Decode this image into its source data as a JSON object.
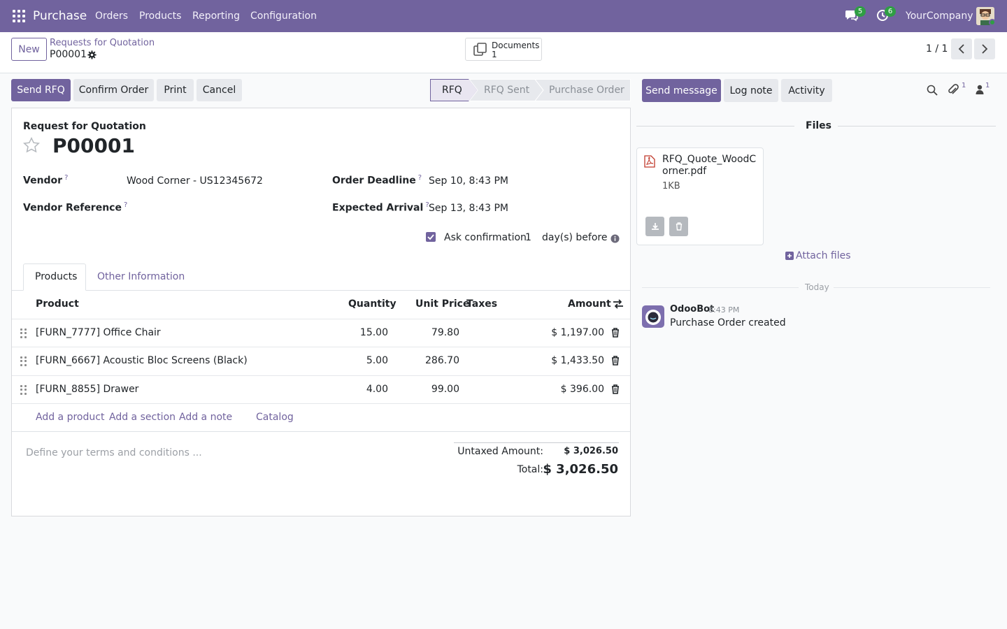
{
  "topbar": {
    "app_name": "Purchase",
    "menu": [
      "Orders",
      "Products",
      "Reporting",
      "Configuration"
    ],
    "messages_count": "5",
    "activities_count": "6",
    "company": "YourCompany"
  },
  "control_panel": {
    "new_label": "New",
    "breadcrumb": "Requests for Quotation",
    "record": "P00001",
    "documents_label": "Documents",
    "documents_count": "1",
    "pager": "1 / 1"
  },
  "actions": {
    "send_rfq": "Send RFQ",
    "confirm_order": "Confirm Order",
    "print": "Print",
    "cancel": "Cancel"
  },
  "statusbar": {
    "stages": [
      "RFQ",
      "RFQ Sent",
      "Purchase Order"
    ],
    "current": "RFQ"
  },
  "form": {
    "heading": "Request for Quotation",
    "name": "P00001",
    "vendor_label": "Vendor",
    "vendor_value": "Wood Corner - US12345672",
    "vendor_ref_label": "Vendor Reference",
    "vendor_ref_value": "",
    "order_deadline_label": "Order Deadline",
    "order_deadline_value": "Sep 10, 8:43 PM",
    "expected_arrival_label": "Expected Arrival",
    "expected_arrival_value": "Sep 13, 8:43 PM",
    "ask_confirmation_label": "Ask confirmation",
    "ask_confirmation_days": "1",
    "days_before": "day(s) before",
    "help_mark": "?",
    "tabs": [
      "Products",
      "Other Information"
    ],
    "columns": [
      "Product",
      "Quantity",
      "Unit Price",
      "Taxes",
      "Amount"
    ],
    "lines": [
      {
        "product": "[FURN_7777] Office Chair",
        "qty": "15.00",
        "price": "79.80",
        "taxes": "",
        "amount": "$ 1,197.00"
      },
      {
        "product": "[FURN_6667] Acoustic Bloc Screens (Black)",
        "qty": "5.00",
        "price": "286.70",
        "taxes": "",
        "amount": "$ 1,433.50"
      },
      {
        "product": "[FURN_8855] Drawer",
        "qty": "4.00",
        "price": "99.00",
        "taxes": "",
        "amount": "$ 396.00"
      }
    ],
    "add_links": [
      "Add a product",
      "Add a section",
      "Add a note",
      "Catalog"
    ],
    "terms_placeholder": "Define your terms and conditions ...",
    "untaxed_label": "Untaxed Amount:",
    "untaxed_value": "$ 3,026.50",
    "total_label": "Total:",
    "total_value": "$ 3,026.50"
  },
  "chatter": {
    "send_message": "Send message",
    "log_note": "Log note",
    "activity": "Activity",
    "attachments_count": "1",
    "followers_count": "1",
    "files_title": "Files",
    "file_name_line1": "RFQ_Quote_WoodC",
    "file_name_line2": "orner.pdf",
    "file_size": "1KB",
    "attach_files": "Attach files",
    "date_separator": "Today",
    "message": {
      "author": "OdooBot",
      "time": "8:43 PM",
      "body": "Purchase Order created"
    }
  },
  "colors": {
    "brand": "#71639e",
    "badge": "#2f9e44",
    "link": "#71639e"
  }
}
